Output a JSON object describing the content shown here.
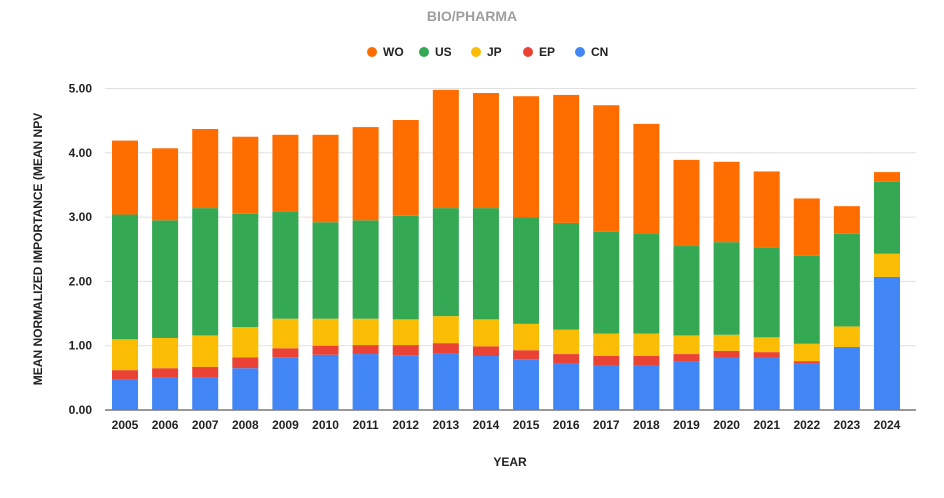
{
  "chart_data": {
    "type": "bar",
    "stacked": true,
    "title": "BIO/PHARMA",
    "xlabel": "YEAR",
    "ylabel": "MEAN NORMALIZED IMPORTANCE (MEAN NPV",
    "ylim": [
      0,
      5
    ],
    "yticks": [
      "0.00",
      "1.00",
      "2.00",
      "3.00",
      "4.00",
      "5.00"
    ],
    "grid": true,
    "legend_position": "top",
    "categories": [
      "2005",
      "2006",
      "2007",
      "2008",
      "2009",
      "2010",
      "2011",
      "2012",
      "2013",
      "2014",
      "2015",
      "2016",
      "2017",
      "2018",
      "2019",
      "2020",
      "2021",
      "2022",
      "2023",
      "2024"
    ],
    "legend_order": [
      "WO",
      "US",
      "JP",
      "EP",
      "CN"
    ],
    "series": [
      {
        "name": "CN",
        "color": "#4285f4",
        "values": [
          0.47,
          0.5,
          0.5,
          0.65,
          0.82,
          0.86,
          0.87,
          0.85,
          0.88,
          0.84,
          0.79,
          0.73,
          0.7,
          0.7,
          0.75,
          0.81,
          0.81,
          0.72,
          0.97,
          2.06
        ]
      },
      {
        "name": "EP",
        "color": "#ea4335",
        "values": [
          0.15,
          0.15,
          0.17,
          0.17,
          0.14,
          0.14,
          0.14,
          0.16,
          0.16,
          0.15,
          0.14,
          0.14,
          0.14,
          0.14,
          0.12,
          0.11,
          0.09,
          0.04,
          0.01,
          0.01
        ]
      },
      {
        "name": "JP",
        "color": "#fbbc04",
        "values": [
          0.48,
          0.47,
          0.49,
          0.47,
          0.46,
          0.42,
          0.41,
          0.4,
          0.42,
          0.42,
          0.41,
          0.38,
          0.35,
          0.35,
          0.29,
          0.25,
          0.23,
          0.27,
          0.32,
          0.36
        ]
      },
      {
        "name": "US",
        "color": "#34a853",
        "values": [
          1.94,
          1.83,
          1.98,
          1.76,
          1.66,
          1.5,
          1.53,
          1.61,
          1.68,
          1.73,
          1.66,
          1.66,
          1.58,
          1.56,
          1.39,
          1.44,
          1.4,
          1.37,
          1.44,
          1.12
        ]
      },
      {
        "name": "WO",
        "color": "#ff6d01",
        "values": [
          1.15,
          1.12,
          1.23,
          1.2,
          1.2,
          1.36,
          1.45,
          1.49,
          1.84,
          1.79,
          1.88,
          1.99,
          1.97,
          1.7,
          1.34,
          1.25,
          1.18,
          0.89,
          0.43,
          0.15
        ]
      }
    ]
  }
}
